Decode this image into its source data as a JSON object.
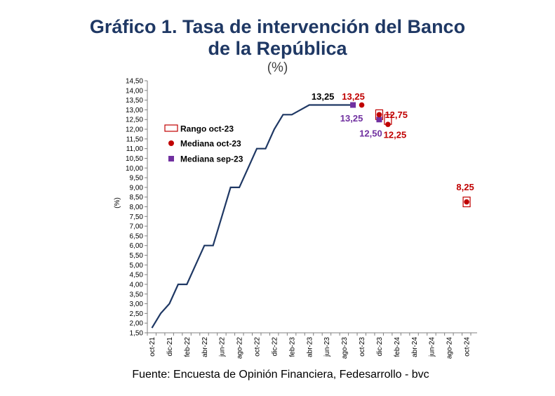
{
  "title_line1": "Gráfico 1. Tasa de intervención del Banco",
  "title_line2": "de la República",
  "unit": "(%)",
  "source": "Fuente: Encuesta de Opinión Financiera, Fedesarrollo - bvc",
  "colors": {
    "line": "#1f3864",
    "median_oct": "#c00000",
    "range_oct": "#c00000",
    "median_sep": "#7030a0",
    "title": "#1f3864"
  },
  "chart_data": {
    "type": "line",
    "ylabel": "(%)",
    "ylim": [
      1.5,
      14.5
    ],
    "y_ticks": [
      "14,50",
      "14,00",
      "13,50",
      "13,00",
      "12,50",
      "12,00",
      "11,50",
      "11,00",
      "10,50",
      "10,00",
      "9,50",
      "9,00",
      "8,50",
      "8,00",
      "7,50",
      "7,00",
      "6,50",
      "6,00",
      "5,50",
      "5,00",
      "4,50",
      "4,00",
      "3,50",
      "3,00",
      "2,50",
      "2,00",
      "1,50"
    ],
    "x_ticks": [
      "oct-21",
      "dic-21",
      "feb-22",
      "abr-22",
      "jun-22",
      "ago-22",
      "oct-22",
      "dic-22",
      "feb-23",
      "abr-23",
      "jun-23",
      "ago-23",
      "oct-23",
      "dic-23",
      "feb-24",
      "abr-24",
      "jun-24",
      "ago-24",
      "oct-24"
    ],
    "grid": false,
    "legend": {
      "placement": "left",
      "items": [
        "Rango oct-23",
        "Mediana oct-23",
        "Mediana sep-23"
      ]
    },
    "series": [
      {
        "values": [
          [
            "oct-21",
            1.75
          ],
          [
            "nov-21",
            2.5
          ],
          [
            "dic-21",
            3.0
          ],
          [
            "ene-22",
            4.0
          ],
          [
            "feb-22",
            4.0
          ],
          [
            "mar-22",
            5.0
          ],
          [
            "abr-22",
            6.0
          ],
          [
            "may-22",
            6.0
          ],
          [
            "jun-22",
            7.5
          ],
          [
            "jul-22",
            9.0
          ],
          [
            "ago-22",
            9.0
          ],
          [
            "sep-22",
            10.0
          ],
          [
            "oct-22",
            11.0
          ],
          [
            "nov-22",
            11.0
          ],
          [
            "dic-22",
            12.0
          ],
          [
            "ene-23",
            12.75
          ],
          [
            "feb-23",
            12.75
          ],
          [
            "mar-23",
            13.0
          ],
          [
            "abr-23",
            13.25
          ],
          [
            "may-23",
            13.25
          ],
          [
            "jun-23",
            13.25
          ],
          [
            "jul-23",
            13.25
          ],
          [
            "ago-23",
            13.25
          ],
          [
            "sep-23",
            13.25
          ]
        ]
      },
      {
        "name": "Mediana oct-23",
        "points": [
          [
            "oct-23",
            13.25
          ],
          [
            "dic-23",
            12.75
          ],
          [
            "ene-24",
            12.25
          ],
          [
            "oct-24",
            8.25
          ]
        ]
      },
      {
        "name": "Mediana sep-23",
        "points": [
          [
            "sep-23",
            13.25
          ],
          [
            "dic-23",
            12.5
          ]
        ]
      },
      {
        "name": "Rango oct-23",
        "ranges": [
          [
            "dic-23",
            12.5,
            13.0
          ],
          [
            "ene-24",
            12.25,
            12.75
          ],
          [
            "oct-24",
            8.0,
            8.5
          ]
        ]
      }
    ],
    "annotations": [
      {
        "text": "13,25",
        "x": "jul-23",
        "y": 13.25,
        "series": "line"
      },
      {
        "text": "13,25",
        "x": "oct-23",
        "y": 13.25,
        "series": "Mediana oct-23"
      },
      {
        "text": "12,75",
        "x": "dic-23",
        "y": 12.75,
        "series": "Mediana oct-23"
      },
      {
        "text": "13,25",
        "x": "sep-23",
        "y": 13.25,
        "series": "Mediana sep-23"
      },
      {
        "text": "12,50",
        "x": "dic-23",
        "y": 12.5,
        "series": "Mediana sep-23"
      },
      {
        "text": "12,25",
        "x": "ene-24",
        "y": 12.25,
        "series": "Mediana oct-23"
      },
      {
        "text": "8,25",
        "x": "oct-24",
        "y": 8.25,
        "series": "Mediana oct-23"
      }
    ]
  }
}
